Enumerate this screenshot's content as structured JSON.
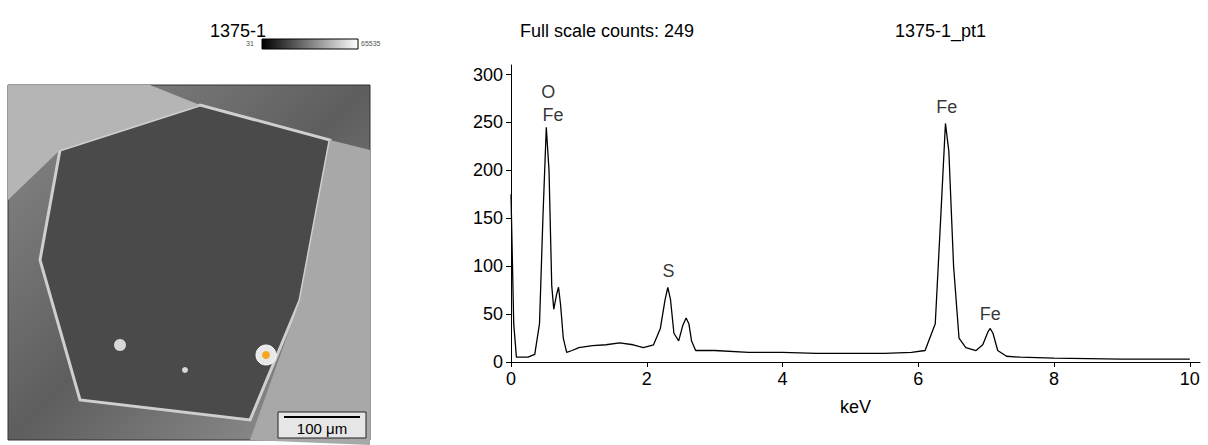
{
  "image": {
    "title": "1375-1",
    "colorbar_min": 31,
    "colorbar_max": 65535,
    "scale_bar": "100 μm"
  },
  "chart_data": {
    "type": "line",
    "title": "1375-1_pt1",
    "subtitle": "Full scale counts: 249",
    "xlabel": "keV",
    "color": "#000000",
    "grid": false,
    "x": [
      0,
      0.04,
      0.08,
      0.15,
      0.25,
      0.35,
      0.42,
      0.47,
      0.52,
      0.56,
      0.6,
      0.63,
      0.67,
      0.7,
      0.73,
      0.77,
      0.82,
      0.9,
      1.0,
      1.2,
      1.4,
      1.6,
      1.8,
      1.95,
      2.1,
      2.2,
      2.27,
      2.31,
      2.35,
      2.4,
      2.47,
      2.53,
      2.58,
      2.62,
      2.66,
      2.72,
      2.8,
      3.0,
      3.5,
      4,
      4.5,
      5,
      5.5,
      5.9,
      6.1,
      6.25,
      6.33,
      6.4,
      6.45,
      6.52,
      6.6,
      6.7,
      6.85,
      6.95,
      7.03,
      7.06,
      7.1,
      7.17,
      7.3,
      7.5,
      8,
      9,
      10
    ],
    "values": [
      175,
      40,
      5,
      5,
      5,
      8,
      40,
      150,
      245,
      200,
      80,
      55,
      70,
      78,
      60,
      25,
      10,
      12,
      15,
      17,
      18,
      20,
      18,
      15,
      18,
      35,
      65,
      78,
      65,
      30,
      22,
      38,
      46,
      40,
      22,
      12,
      12,
      12,
      10,
      10,
      9,
      9,
      9,
      10,
      12,
      40,
      150,
      249,
      220,
      100,
      25,
      15,
      12,
      18,
      32,
      35,
      30,
      12,
      6,
      5,
      4,
      3,
      3
    ],
    "xlim": [
      0,
      10.15
    ],
    "xticks": [
      0,
      2,
      4,
      6,
      8,
      10
    ],
    "ylim": [
      0,
      310
    ],
    "yticks": [
      0,
      50,
      100,
      150,
      200,
      250,
      300
    ],
    "annotations": [
      {
        "text": "O",
        "x": 0.55,
        "y": 282
      },
      {
        "text": "Fe",
        "x": 0.62,
        "y": 258
      },
      {
        "text": "S",
        "x": 2.32,
        "y": 95
      },
      {
        "text": "Fe",
        "x": 6.42,
        "y": 266
      },
      {
        "text": "Fe",
        "x": 7.06,
        "y": 50
      }
    ]
  }
}
